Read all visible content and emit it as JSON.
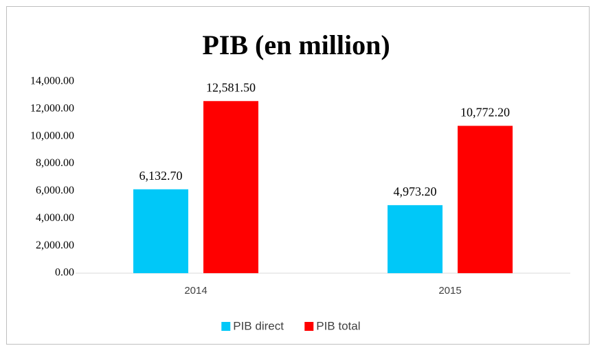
{
  "chart_data": {
    "type": "bar",
    "title": "PIB (en million)",
    "categories": [
      "2014",
      "2015"
    ],
    "series": [
      {
        "name": "PIB direct",
        "color": "#00c8f8",
        "values": [
          6132.7,
          4973.2
        ],
        "value_labels": [
          "6,132.70",
          "4,973.20"
        ]
      },
      {
        "name": "PIB total",
        "color": "#ff0000",
        "values": [
          12581.5,
          10772.2
        ],
        "value_labels": [
          "12,581.50",
          "10,772.20"
        ]
      }
    ],
    "ylim": [
      0,
      14000
    ],
    "yticks": [
      {
        "value": 0,
        "label": "0.00"
      },
      {
        "value": 2000,
        "label": "2,000.00"
      },
      {
        "value": 4000,
        "label": "4,000.00"
      },
      {
        "value": 6000,
        "label": "6,000.00"
      },
      {
        "value": 8000,
        "label": "8,000.00"
      },
      {
        "value": 10000,
        "label": "10,000.00"
      },
      {
        "value": 12000,
        "label": "12,000.00"
      },
      {
        "value": 14000,
        "label": "14,000.00"
      }
    ],
    "grid": false,
    "legend": "bottom"
  }
}
